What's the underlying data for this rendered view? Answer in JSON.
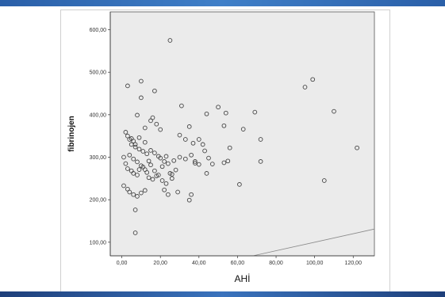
{
  "chart_data": {
    "type": "scatter",
    "xlabel": "AHİ",
    "ylabel": "fibrinojen",
    "xlim": [
      -6,
      131
    ],
    "ylim": [
      68,
      642
    ],
    "x_ticks": [
      "0,00",
      "20,00",
      "40,00",
      "60,00",
      "80,00",
      "100,00",
      "120,00"
    ],
    "x_tick_values": [
      0,
      20,
      40,
      60,
      80,
      100,
      120
    ],
    "y_ticks": [
      "100,00",
      "200,00",
      "300,00",
      "400,00",
      "500,00",
      "600,00"
    ],
    "y_tick_values": [
      100,
      200,
      300,
      400,
      500,
      600
    ],
    "reference_line": "y = x",
    "grid": false,
    "plot_background": "#ebebeb",
    "marker_style": "hollow-circle",
    "marker_color": "#444444",
    "points": [
      [
        25,
        575
      ],
      [
        3,
        468
      ],
      [
        10,
        479
      ],
      [
        17,
        456
      ],
      [
        10,
        440
      ],
      [
        31,
        421
      ],
      [
        50,
        418
      ],
      [
        54,
        404
      ],
      [
        69,
        406
      ],
      [
        8,
        399
      ],
      [
        15,
        386
      ],
      [
        18,
        378
      ],
      [
        12,
        369
      ],
      [
        20,
        365
      ],
      [
        35,
        372
      ],
      [
        53,
        374
      ],
      [
        63,
        366
      ],
      [
        99,
        483
      ],
      [
        95,
        465
      ],
      [
        110,
        408
      ],
      [
        122,
        322
      ],
      [
        105,
        245
      ],
      [
        2,
        359
      ],
      [
        3,
        350
      ],
      [
        4,
        342
      ],
      [
        6,
        338
      ],
      [
        5,
        330
      ],
      [
        7,
        324
      ],
      [
        9,
        319
      ],
      [
        11,
        314
      ],
      [
        13,
        308
      ],
      [
        15,
        316
      ],
      [
        17,
        310
      ],
      [
        20,
        298
      ],
      [
        22,
        290
      ],
      [
        24,
        285
      ],
      [
        27,
        292
      ],
      [
        30,
        300
      ],
      [
        33,
        296
      ],
      [
        36,
        305
      ],
      [
        38,
        290
      ],
      [
        40,
        283
      ],
      [
        43,
        315
      ],
      [
        45,
        298
      ],
      [
        47,
        284
      ],
      [
        56,
        322
      ],
      [
        53,
        287
      ],
      [
        55,
        291
      ],
      [
        72,
        342
      ],
      [
        72,
        290
      ],
      [
        61,
        236
      ],
      [
        1,
        300
      ],
      [
        2,
        285
      ],
      [
        3,
        273
      ],
      [
        5,
        268
      ],
      [
        6,
        262
      ],
      [
        8,
        258
      ],
      [
        9,
        271
      ],
      [
        11,
        277
      ],
      [
        13,
        264
      ],
      [
        14,
        252
      ],
      [
        16,
        248
      ],
      [
        18,
        256
      ],
      [
        21,
        245
      ],
      [
        23,
        238
      ],
      [
        25,
        262
      ],
      [
        26,
        250
      ],
      [
        1,
        233
      ],
      [
        3,
        225
      ],
      [
        4,
        218
      ],
      [
        6,
        212
      ],
      [
        8,
        208
      ],
      [
        10,
        216
      ],
      [
        12,
        222
      ],
      [
        7,
        176
      ],
      [
        7,
        122
      ],
      [
        22,
        223
      ],
      [
        24,
        212
      ],
      [
        29,
        218
      ],
      [
        36,
        212
      ],
      [
        35,
        199
      ],
      [
        38,
        286
      ],
      [
        40,
        342
      ],
      [
        42,
        330
      ],
      [
        44,
        262
      ],
      [
        33,
        342
      ],
      [
        30,
        352
      ],
      [
        26,
        260
      ],
      [
        19,
        302
      ],
      [
        14,
        291
      ],
      [
        12,
        335
      ],
      [
        9,
        346
      ],
      [
        7,
        330
      ],
      [
        5,
        344
      ],
      [
        4,
        305
      ],
      [
        6,
        296
      ],
      [
        8,
        289
      ],
      [
        10,
        280
      ],
      [
        12,
        271
      ],
      [
        15,
        282
      ],
      [
        17,
        268
      ],
      [
        19,
        258
      ],
      [
        21,
        278
      ],
      [
        23,
        302
      ],
      [
        28,
        270
      ],
      [
        44,
        402
      ],
      [
        37,
        333
      ],
      [
        16,
        393
      ]
    ]
  }
}
